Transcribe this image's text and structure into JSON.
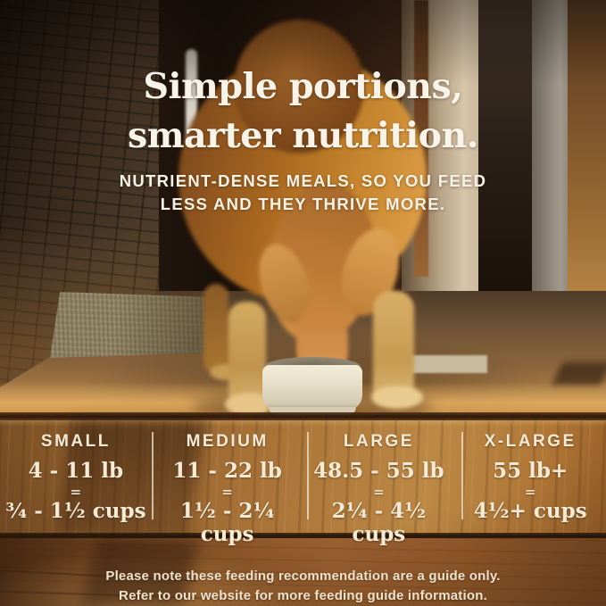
{
  "header": {
    "title_line1": "Simple portions,",
    "title_line2": "smarter nutrition.",
    "subtitle_line1": "NUTRIENT-DENSE MEALS, SO YOU FEED",
    "subtitle_line2": "LESS AND THEY THRIVE MORE."
  },
  "feeding_guide": {
    "columns": [
      {
        "size": "SMALL",
        "weight": "4 - 11 lb",
        "equals": "=",
        "cups": "¾ - 1½ cups"
      },
      {
        "size": "MEDIUM",
        "weight": "11 - 22 lb",
        "equals": "=",
        "cups": "1½ - 2¼ cups"
      },
      {
        "size": "LARGE",
        "weight": "48.5 - 55 lb",
        "equals": "=",
        "cups": "2¼ - 4½ cups"
      },
      {
        "size": "X-LARGE",
        "weight": "55 lb+",
        "equals": "=",
        "cups": "4½+ cups"
      }
    ]
  },
  "footer": {
    "note_line1": "Please note these feeding recommendation are a guide only.",
    "note_line2": "Refer to our website for more feeding guide information."
  },
  "scene": {
    "subject": "golden dog eating from a cream ceramic bowl on a sunlit wooden floor",
    "colors": {
      "text_cream": "#f4ebd6",
      "floor_honey": "#aa7438",
      "floor_shadow": "#4e2e15",
      "bowl_cream": "#e5dec6",
      "dog_gold": "#c9882f",
      "brick_brown": "#4e3d2c"
    }
  }
}
